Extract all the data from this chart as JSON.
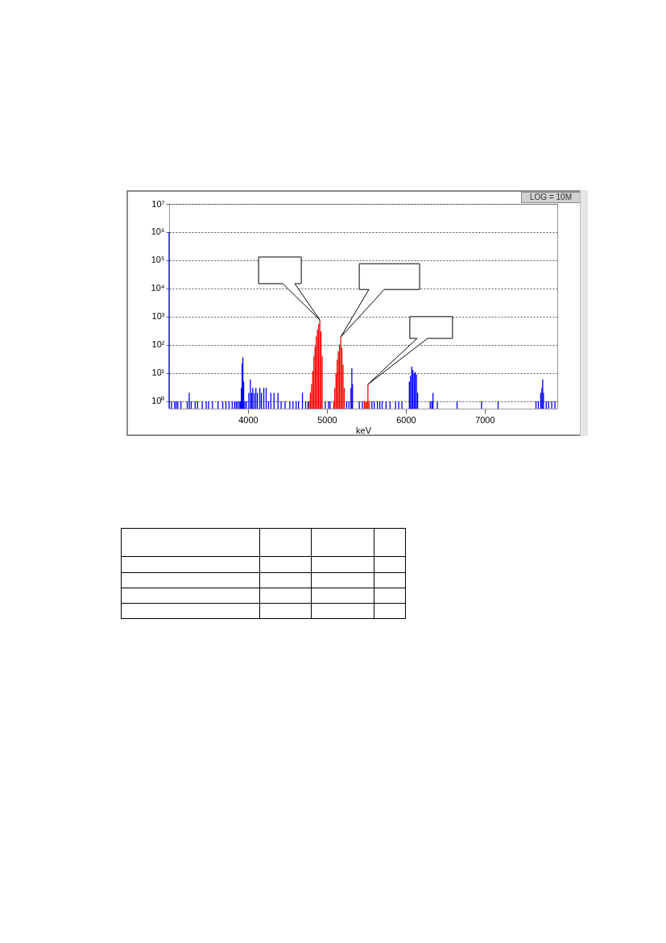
{
  "chart_data": {
    "type": "bar",
    "xlabel": "keV",
    "log": true,
    "grid": "y",
    "xlim": [
      3000,
      7920
    ],
    "ylim": [
      0.55,
      10000000
    ],
    "xticks": [
      4000,
      5000,
      6000,
      7000
    ],
    "yticks": [
      {
        "value": 1,
        "label": "10⁰"
      },
      {
        "value": 10,
        "label": "10¹"
      },
      {
        "value": 100,
        "label": "10²"
      },
      {
        "value": 1000,
        "label": "10³"
      },
      {
        "value": 10000,
        "label": "10⁴"
      },
      {
        "value": 100000,
        "label": "10⁵"
      },
      {
        "value": 1000000,
        "label": "10⁶"
      },
      {
        "value": 10000000,
        "label": "10⁷"
      }
    ],
    "annotations": [
      "LOG = 10M"
    ],
    "series": [
      {
        "color": "#0000ff",
        "x": [
          3000,
          3030,
          3070,
          3090,
          3110,
          3150,
          3230,
          3255,
          3280,
          3330,
          3360,
          3420,
          3470,
          3500,
          3550,
          3620,
          3680,
          3720,
          3760,
          3800,
          3830,
          3850,
          3870,
          3890,
          3905,
          3915,
          3925,
          3935,
          3945,
          3960,
          3980,
          4010,
          4030,
          4045,
          4060,
          4080,
          4100,
          4120,
          4150,
          4170,
          4200,
          4230,
          4260,
          4290,
          4330,
          4380,
          4420,
          4470,
          4530,
          4570,
          4610,
          4640,
          4690,
          4730,
          4760,
          4980,
          5020,
          5040,
          5250,
          5280,
          5305,
          5316,
          5325,
          5410,
          5450,
          5570,
          5600,
          5640,
          5670,
          5700,
          5750,
          5800,
          5870,
          5910,
          5950,
          6045,
          6060,
          6075,
          6090,
          6105,
          6120,
          6135,
          6150,
          6310,
          6330,
          6345,
          6400,
          6650,
          6960,
          7170,
          7650,
          7680,
          7710,
          7725,
          7735,
          7745,
          7780,
          7810,
          7850,
          7890
        ],
        "values": [
          1000000,
          1,
          1,
          1,
          1,
          1,
          1,
          2,
          1,
          1,
          1,
          1,
          1,
          1,
          1,
          1,
          1,
          1,
          1,
          1,
          1,
          1,
          1,
          1,
          1,
          3,
          22,
          36,
          5,
          1,
          1,
          2,
          6,
          2,
          3,
          2,
          3,
          2,
          3,
          2,
          3,
          3,
          1,
          2,
          2,
          2,
          1,
          1,
          1,
          1,
          1,
          1,
          2,
          1,
          1,
          1,
          1,
          1,
          1,
          1,
          3,
          15,
          4,
          1,
          1,
          1,
          1,
          1,
          1,
          1,
          1,
          1,
          1,
          1,
          1,
          5,
          8,
          17,
          13,
          10,
          11,
          9,
          2,
          1,
          1,
          2,
          1,
          1,
          1,
          1,
          1,
          1,
          2,
          3,
          6,
          2,
          1,
          1,
          1,
          1
        ]
      },
      {
        "color": "#ff0000",
        "x": [
          4775,
          4790,
          4805,
          4820,
          4835,
          4850,
          4865,
          4880,
          4895,
          4910,
          4925,
          4940,
          5085,
          5100,
          5115,
          5130,
          5145,
          5160,
          5175,
          5190,
          5205,
          5220,
          5475,
          5490,
          5505,
          5520,
          5535
        ],
        "values": [
          1,
          2,
          4,
          12,
          40,
          90,
          200,
          350,
          550,
          770,
          300,
          40,
          1,
          3,
          10,
          30,
          60,
          100,
          190,
          80,
          20,
          3,
          1,
          1,
          1,
          4,
          1
        ]
      }
    ]
  }
}
